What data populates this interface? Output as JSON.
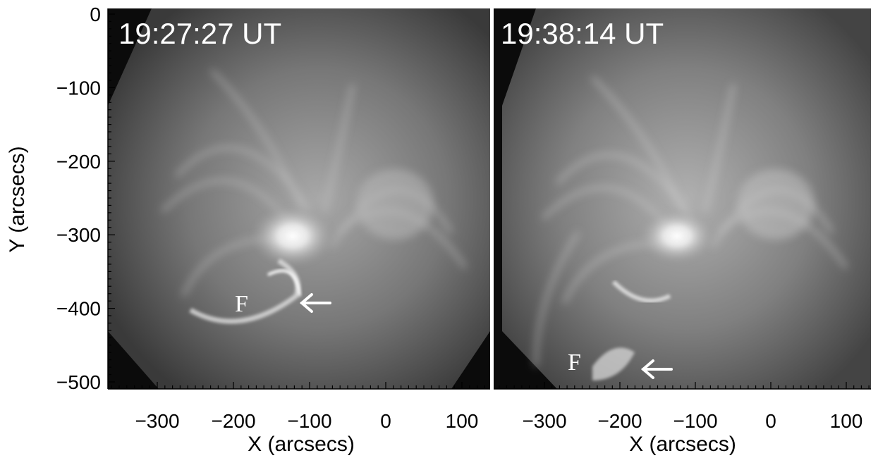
{
  "y_axis": {
    "label": "Y (arcsecs)",
    "ticks": [
      "0",
      "−100",
      "−200",
      "−300",
      "−400",
      "−500"
    ],
    "tick_values": [
      0,
      -100,
      -200,
      -300,
      -400,
      -500
    ],
    "range": [
      -510,
      15
    ]
  },
  "x_axis": {
    "label": "X (arcsecs)",
    "ticks": [
      "−300",
      "−200",
      "−100",
      "0",
      "100"
    ],
    "tick_values": [
      -300,
      -200,
      -100,
      0,
      100
    ],
    "range": [
      -380,
      140
    ]
  },
  "panels": [
    {
      "timestamp": "19:27:27 UT",
      "feature_label": "F",
      "arrow_icon": "arrow-left-icon",
      "feature_position_arcsec": [
        -110,
        -390
      ]
    },
    {
      "timestamp": "19:38:14 UT",
      "feature_label": "F",
      "arrow_icon": "arrow-left-icon",
      "feature_position_arcsec": [
        -170,
        -480
      ]
    }
  ],
  "colors": {
    "background": "#ffffff",
    "image_dark": "#0b0b0b",
    "image_bright": "#f5f5f5",
    "annotation": "#ffffff",
    "axis": "#000000"
  }
}
